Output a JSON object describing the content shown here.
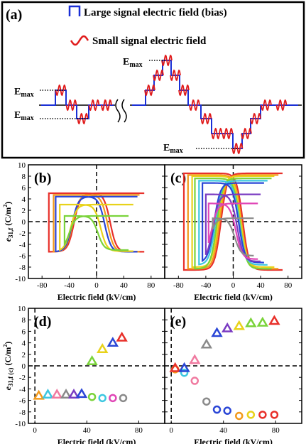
{
  "panel_a": {
    "label": "(a)",
    "legend": [
      {
        "name": "Large signal electric field (bias)",
        "color": "#1a2fd6"
      },
      {
        "name": "Small signal electric field",
        "color": "#e01b1b"
      }
    ],
    "emax_label": "E",
    "emax_sub": "max"
  },
  "colors": {
    "red": "#e8302a",
    "orange": "#f29a1c",
    "yellow": "#e8d21a",
    "green": "#7ad33a",
    "cyan": "#3dc7e0",
    "blue": "#2a46d6",
    "purple": "#7a3bc2",
    "magenta": "#e046b6",
    "gray": "#8a8a8a",
    "pink": "#f07aa0"
  },
  "chart_data": [
    {
      "panel": "(b)",
      "type": "line",
      "xlabel": "Electric field (kV/cm)",
      "ylabel": "e31,f (C/m2)",
      "ylabel_main": "e",
      "ylabel_sub": "31,f",
      "ylabel_unit": " (C/m",
      "ylabel_sup": "2",
      "ylabel_close": ")",
      "xlim": [
        -100,
        100
      ],
      "ylim": [
        -10,
        10
      ],
      "xticks": [
        -80,
        -40,
        0,
        40,
        80
      ],
      "yticks": [
        -10,
        -8,
        -6,
        -4,
        -2,
        0,
        2,
        4,
        6,
        8,
        10
      ],
      "series": [
        {
          "color": "red",
          "amax": 70,
          "vtop": 5.0,
          "vbot": -5.3,
          "cpos": 20,
          "cneg": -33
        },
        {
          "color": "orange",
          "amax": 63,
          "vtop": 4.7,
          "vbot": -5.3,
          "cpos": 16,
          "cneg": -35
        },
        {
          "color": "blue",
          "amax": 60,
          "vtop": 4.4,
          "vbot": -5.3,
          "cpos": 12,
          "cneg": -36
        },
        {
          "color": "yellow",
          "amax": 54,
          "vtop": 3.0,
          "vbot": -5.2,
          "cpos": 6,
          "cneg": -38
        },
        {
          "color": "green",
          "amax": 47,
          "vtop": 1.0,
          "vbot": -5.0,
          "cpos": 2,
          "cneg": -40
        }
      ]
    },
    {
      "panel": "(c)",
      "type": "line",
      "xlabel": "Electric field (kV/cm)",
      "xlim": [
        -100,
        100
      ],
      "ylim": [
        -10,
        10
      ],
      "xticks": [
        -80,
        -40,
        0,
        40,
        80
      ],
      "yticks": [
        -10,
        -8,
        -6,
        -4,
        -2,
        0,
        2,
        4,
        6,
        8,
        10
      ],
      "series": [
        {
          "color": "red",
          "amax": 72,
          "vtop": 8.5,
          "vbot": -8.5,
          "cpos": 14,
          "cneg": -18
        },
        {
          "color": "orange",
          "amax": 66,
          "vtop": 8.2,
          "vbot": -8.3,
          "cpos": 12,
          "cneg": -20
        },
        {
          "color": "yellow",
          "amax": 60,
          "vtop": 8.0,
          "vbot": -8.0,
          "cpos": 11,
          "cneg": -22
        },
        {
          "color": "green",
          "amax": 56,
          "vtop": 7.6,
          "vbot": -8.3,
          "cpos": 10,
          "cneg": -24
        },
        {
          "color": "cyan",
          "amax": 50,
          "vtop": 7.2,
          "vbot": -7.6,
          "cpos": 9,
          "cneg": -26
        },
        {
          "color": "blue",
          "amax": 45,
          "vtop": 6.8,
          "vbot": -7.2,
          "cpos": 8,
          "cneg": -28
        },
        {
          "color": "purple",
          "amax": 40,
          "vtop": 4.8,
          "vbot": -7.0,
          "cpos": 6,
          "cneg": -30
        },
        {
          "color": "magenta",
          "amax": 36,
          "vtop": 3.2,
          "vbot": -6.6,
          "cpos": 4,
          "cneg": -32
        },
        {
          "color": "gray",
          "amax": 30,
          "vtop": 0.6,
          "vbot": -6.0,
          "cpos": 2,
          "cneg": -34
        }
      ]
    },
    {
      "panel": "(d)",
      "type": "scatter",
      "xlabel": "Electric field (kV/cm)",
      "ylabel": "e31,f(c) (C/m2)",
      "ylabel_main": "e",
      "ylabel_sub": "31,f (c)",
      "ylabel_unit": " (C/m",
      "ylabel_sup": "2",
      "ylabel_close": ")",
      "xlim": [
        -5,
        100
      ],
      "ylim": [
        -10,
        10
      ],
      "xticks": [
        0,
        40,
        80
      ],
      "yticks": [
        -10,
        -8,
        -6,
        -4,
        -2,
        0,
        2,
        4,
        6,
        8,
        10
      ],
      "triangles": [
        {
          "x": 3,
          "y": -5.2,
          "color": "orange"
        },
        {
          "x": 10,
          "y": -5.0,
          "color": "cyan"
        },
        {
          "x": 17,
          "y": -5.0,
          "color": "pink"
        },
        {
          "x": 24,
          "y": -5.0,
          "color": "gray"
        },
        {
          "x": 30,
          "y": -5.0,
          "color": "purple"
        },
        {
          "x": 36,
          "y": -4.9,
          "color": "blue"
        },
        {
          "x": 44,
          "y": 0.8,
          "color": "green"
        },
        {
          "x": 52,
          "y": 2.9,
          "color": "yellow"
        },
        {
          "x": 60,
          "y": 4.0,
          "color": "blue"
        },
        {
          "x": 67,
          "y": 4.9,
          "color": "red"
        }
      ],
      "circles": [
        {
          "x": 44,
          "y": -5.4,
          "color": "green"
        },
        {
          "x": 52,
          "y": -5.6,
          "color": "cyan"
        },
        {
          "x": 60,
          "y": -5.6,
          "color": "magenta"
        },
        {
          "x": 68,
          "y": -5.6,
          "color": "gray"
        }
      ]
    },
    {
      "panel": "(e)",
      "type": "scatter",
      "xlabel": "Electric field (kV/cm)",
      "xlim": [
        -5,
        100
      ],
      "ylim": [
        -10,
        10
      ],
      "xticks": [
        0,
        40,
        80
      ],
      "yticks": [
        -10,
        -8,
        -6,
        -4,
        -2,
        0,
        2,
        4,
        6,
        8,
        10
      ],
      "triangles": [
        {
          "x": 3,
          "y": -0.4,
          "color": "red"
        },
        {
          "x": 10,
          "y": -0.4,
          "color": "blue"
        },
        {
          "x": 18,
          "y": 1.0,
          "color": "pink"
        },
        {
          "x": 27,
          "y": 3.7,
          "color": "gray"
        },
        {
          "x": 35,
          "y": 5.7,
          "color": "blue"
        },
        {
          "x": 43,
          "y": 6.5,
          "color": "purple"
        },
        {
          "x": 52,
          "y": 6.9,
          "color": "yellow"
        },
        {
          "x": 61,
          "y": 7.4,
          "color": "green"
        },
        {
          "x": 70,
          "y": 7.5,
          "color": "green"
        },
        {
          "x": 79,
          "y": 7.8,
          "color": "red"
        }
      ],
      "circles": [
        {
          "x": 3,
          "y": -0.6,
          "color": "orange"
        },
        {
          "x": 10,
          "y": -1.2,
          "color": "cyan"
        },
        {
          "x": 18,
          "y": -2.6,
          "color": "pink"
        },
        {
          "x": 27,
          "y": -6.2,
          "color": "gray"
        },
        {
          "x": 35,
          "y": -7.6,
          "color": "blue"
        },
        {
          "x": 43,
          "y": -7.8,
          "color": "blue"
        },
        {
          "x": 52,
          "y": -8.7,
          "color": "orange"
        },
        {
          "x": 61,
          "y": -8.5,
          "color": "yellow"
        },
        {
          "x": 70,
          "y": -8.5,
          "color": "red"
        },
        {
          "x": 79,
          "y": -8.5,
          "color": "red"
        }
      ]
    }
  ]
}
